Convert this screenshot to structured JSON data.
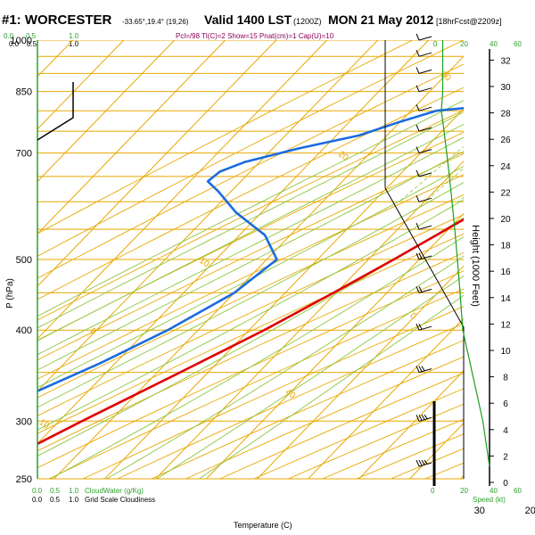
{
  "header": {
    "station": "#1: WORCESTER",
    "coords": "-33.65°,19.4° (19,26)",
    "valid": "Valid 1400 LST",
    "init": "(1200Z)",
    "date": "MON 21 May 2012",
    "forecast": "[18hrFcst@2209z]",
    "indices": "Pcl=/98 Tl(C)=2 Show=15 Pnat(cm)=1 Cap(U)=10"
  },
  "cloud_scale": {
    "top_values": [
      "0.0",
      "0.5",
      "1.0"
    ],
    "top_values_green": [
      "0.0",
      "0.5",
      "1.0"
    ],
    "bottom_green": [
      "0.0",
      "0.5",
      "1.0"
    ],
    "bottom_black": [
      "0.0",
      "0.5",
      "1.0"
    ],
    "cloudwater_label": "CloudWater (g/Kg)",
    "gridscale_label": "Grid Scale Cloudiness"
  },
  "speed_scale": {
    "top": [
      "0",
      "20",
      "40",
      "60"
    ],
    "bottom": [
      "0",
      "20",
      "40",
      "60"
    ],
    "label": "Speed (kt)"
  },
  "colors": {
    "temperature": "#e00000",
    "dewpoint": "#1a6be0",
    "isotherm": "#e8a800",
    "dry_adiabat": "#e8a800",
    "moist_adiabat": "#8cc63f",
    "mixing_ratio": "#8cc63f",
    "cloud_axis": "#2ca02c",
    "speed_curve": "#1a9e1a"
  },
  "chart_data": {
    "type": "line",
    "title": "#1: WORCESTER",
    "xlabel": "Temperature (C)",
    "ylabel": "P (hPa)",
    "y2label": "Height (1000 Feet)",
    "y_scale": "log",
    "ylim": [
      1000,
      250
    ],
    "xlim_at_1000hPa": [
      -40,
      50
    ],
    "skew": true,
    "pressure_ticks": [
      "250",
      "300",
      "400",
      "500",
      "700",
      "850",
      "1000"
    ],
    "pressure_tick_values": [
      250,
      300,
      400,
      500,
      700,
      850,
      1000
    ],
    "isobars": [
      250,
      300,
      350,
      400,
      450,
      500,
      550,
      600,
      650,
      700,
      750,
      800,
      850,
      900,
      950,
      1000
    ],
    "temperature_ticks": [
      "30",
      "20",
      "10",
      "0",
      "10",
      "20",
      "30",
      "40"
    ],
    "temperature_tick_values": [
      -30,
      -20,
      -10,
      0,
      10,
      20,
      30,
      40
    ],
    "height_ticks": [
      "0",
      "2",
      "4",
      "6",
      "8",
      "10",
      "12",
      "14",
      "16",
      "18",
      "20",
      "22",
      "24",
      "26",
      "28",
      "30",
      "32"
    ],
    "isotherm_label_values": [
      -40,
      -30,
      -20,
      -10,
      0,
      10,
      20
    ],
    "isotherm_labels": [
      "10",
      "0",
      "10",
      "20",
      "30",
      "40",
      "0",
      "10",
      "20",
      "30"
    ],
    "mixing_ratio_labels": [
      "2",
      "3",
      "5",
      "8",
      "10",
      "15",
      "20"
    ],
    "series": [
      {
        "name": "Temperature",
        "points": [
          {
            "p": 1000,
            "t": 20.5
          },
          {
            "p": 990,
            "t": 19.0
          },
          {
            "p": 975,
            "t": 17.5
          },
          {
            "p": 960,
            "t": 16.2
          },
          {
            "p": 940,
            "t": 16.0
          },
          {
            "p": 900,
            "t": 16.2
          },
          {
            "p": 870,
            "t": 15.6
          },
          {
            "p": 850,
            "t": 15.5
          },
          {
            "p": 820,
            "t": 15.2
          },
          {
            "p": 800,
            "t": 14.8
          },
          {
            "p": 760,
            "t": 14.2
          },
          {
            "p": 700,
            "t": 11.0
          },
          {
            "p": 650,
            "t": 7.5
          },
          {
            "p": 600,
            "t": 3.8
          },
          {
            "p": 550,
            "t": -0.4
          },
          {
            "p": 500,
            "t": -5.0
          },
          {
            "p": 450,
            "t": -10.5
          },
          {
            "p": 400,
            "t": -17.0
          },
          {
            "p": 350,
            "t": -25.5
          },
          {
            "p": 300,
            "t": -35.5
          },
          {
            "p": 270,
            "t": -42.0
          },
          {
            "p": 255,
            "t": -45.5
          }
        ]
      },
      {
        "name": "Dewpoint",
        "points": [
          {
            "p": 1000,
            "t": 2.0
          },
          {
            "p": 980,
            "t": 1.5
          },
          {
            "p": 950,
            "t": 1.8
          },
          {
            "p": 920,
            "t": 1.0
          },
          {
            "p": 900,
            "t": -1.0
          },
          {
            "p": 870,
            "t": -4.0
          },
          {
            "p": 850,
            "t": -6.0
          },
          {
            "p": 825,
            "t": -7.0
          },
          {
            "p": 800,
            "t": -25.0
          },
          {
            "p": 770,
            "t": -30.5
          },
          {
            "p": 740,
            "t": -35.5
          },
          {
            "p": 710,
            "t": -45.0
          },
          {
            "p": 680,
            "t": -53.0
          },
          {
            "p": 660,
            "t": -56.0
          },
          {
            "p": 640,
            "t": -56.5
          },
          {
            "p": 620,
            "t": -52.5
          },
          {
            "p": 580,
            "t": -45.0
          },
          {
            "p": 540,
            "t": -35.0
          },
          {
            "p": 500,
            "t": -28.0
          },
          {
            "p": 450,
            "t": -30.0
          },
          {
            "p": 400,
            "t": -36.0
          },
          {
            "p": 360,
            "t": -43.0
          },
          {
            "p": 330,
            "t": -50.0
          },
          {
            "p": 300,
            "t": -58.0
          },
          {
            "p": 270,
            "t": -66.0
          },
          {
            "p": 252,
            "t": -71.0
          }
        ]
      }
    ],
    "surface_marker": {
      "p": 1000,
      "t": 4.0
    },
    "wind_speed_kt": [
      {
        "p": 1000,
        "spd": 5
      },
      {
        "p": 950,
        "spd": 5
      },
      {
        "p": 900,
        "spd": 5
      },
      {
        "p": 850,
        "spd": 5
      },
      {
        "p": 800,
        "spd": 4
      },
      {
        "p": 750,
        "spd": 6
      },
      {
        "p": 700,
        "spd": 8
      },
      {
        "p": 650,
        "spd": 10
      },
      {
        "p": 600,
        "spd": 12
      },
      {
        "p": 550,
        "spd": 14
      },
      {
        "p": 500,
        "spd": 16
      },
      {
        "p": 450,
        "spd": 18
      },
      {
        "p": 400,
        "spd": 20
      },
      {
        "p": 350,
        "spd": 27
      },
      {
        "p": 300,
        "spd": 35
      },
      {
        "p": 260,
        "spd": 40
      }
    ]
  }
}
